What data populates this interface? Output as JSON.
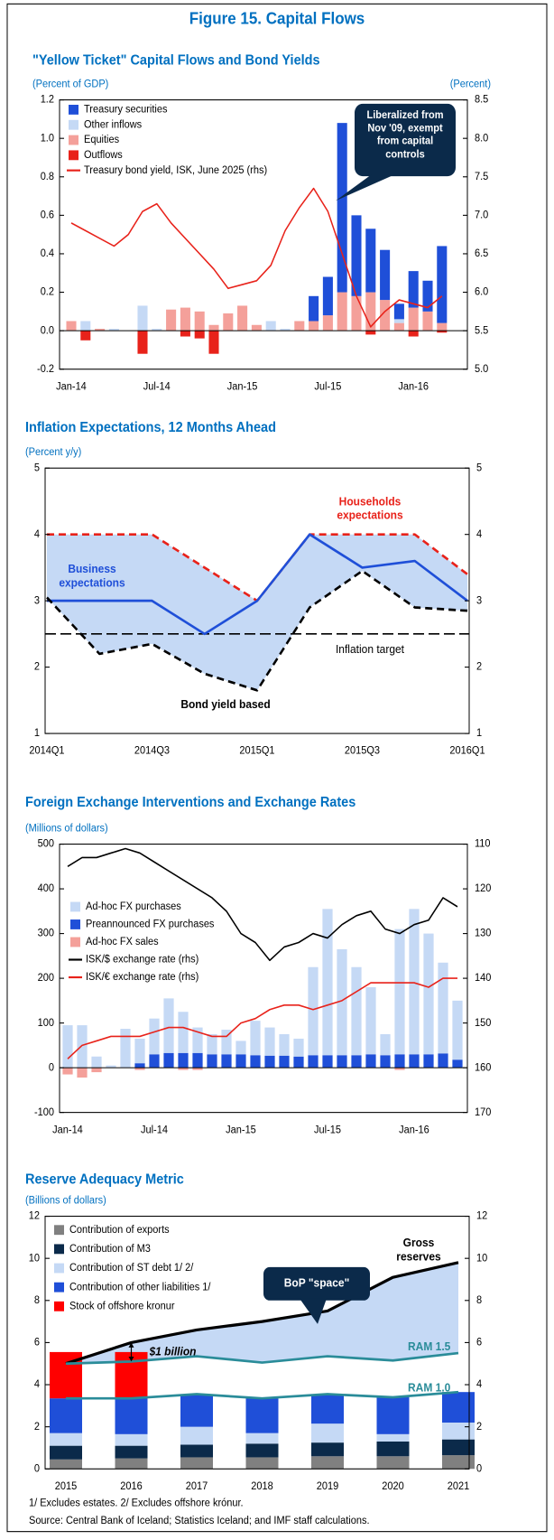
{
  "title": "Figure 15. Capital Flows",
  "notes": [
    "1/ Excludes estates. 2/ Excludes offshore krónur.",
    "Source: Central Bank of Iceland; Statistics Iceland; and IMF staff calculations."
  ],
  "chart_data": [
    {
      "type": "bar",
      "title": "\"Yellow Ticket\" Capital Flows and Bond Yields",
      "ylabel": "(Percent of GDP)",
      "y2label": "(Percent)",
      "stack_order": "reverse",
      "legend": "upper left",
      "annotation": "Liberalized from Nov '09, exempt from capital controls",
      "categories": [
        "Jan-14",
        null,
        null,
        null,
        null,
        null,
        "Jul-14",
        null,
        null,
        null,
        null,
        null,
        "Jan-15",
        null,
        null,
        null,
        null,
        null,
        "Jul-15",
        null,
        null,
        null,
        null,
        null,
        "Jan-16",
        null,
        null
      ],
      "ylim": [
        -0.2,
        1.2
      ],
      "yticks": [
        1.2,
        {
          "value": 1,
          "label": "1.0"
        },
        0.8,
        0.6,
        0.4,
        0.2,
        {
          "value": 0,
          "label": "0.0"
        },
        -0.2
      ],
      "y2lim": [
        5,
        8.5
      ],
      "y2ticks": [
        8.5,
        {
          "value": 8,
          "label": "8.0"
        },
        7.5,
        {
          "value": 7,
          "label": "7.0"
        },
        6.5,
        {
          "value": 6,
          "label": "6.0"
        },
        5.5,
        {
          "value": 5,
          "label": "5.0"
        }
      ],
      "series": [
        {
          "name": "Treasury securities",
          "type": "bar",
          "color": "#1f4fd8",
          "values": [
            0,
            0,
            0,
            0,
            0,
            0,
            0,
            0,
            0,
            0,
            0,
            0,
            0,
            0,
            0,
            0,
            0,
            0.13,
            0.2,
            0.88,
            0.42,
            0.33,
            0.26,
            0.08,
            0.19,
            0.16,
            0.4
          ]
        },
        {
          "name": "Other inflows",
          "type": "bar",
          "color": "#c5d9f5",
          "values": [
            0,
            0.05,
            0,
            0.01,
            0,
            0.13,
            0.01,
            0,
            0,
            0,
            0,
            0,
            0,
            0,
            0.05,
            0.01,
            0,
            0,
            0,
            0,
            0,
            0,
            0,
            0.02,
            0,
            0,
            0
          ]
        },
        {
          "name": "Equities",
          "type": "bar",
          "color": "#f4a09a",
          "values": [
            0.05,
            0,
            0.01,
            0,
            0,
            0,
            0,
            0.11,
            0.12,
            0.1,
            0.03,
            0.09,
            0.13,
            0.03,
            0,
            0,
            0.05,
            0.05,
            0.08,
            0.2,
            0.18,
            0.2,
            0.16,
            0.04,
            0.12,
            0.1,
            0.04
          ]
        },
        {
          "name": "Outflows",
          "type": "bar",
          "color": "#e8221a",
          "values": [
            0,
            -0.05,
            0,
            0,
            0,
            -0.12,
            0,
            0,
            -0.03,
            -0.04,
            -0.12,
            0,
            0,
            0,
            0,
            0,
            0,
            0,
            0,
            0,
            0,
            -0.02,
            0,
            0,
            -0.03,
            0,
            -0.01
          ]
        },
        {
          "name": "Treasury bond yield, ISK, June 2025 (rhs)",
          "type": "line",
          "axis": "y2",
          "color": "#e8221a",
          "values": [
            6.9,
            6.8,
            6.7,
            6.6,
            6.75,
            7.05,
            7.15,
            6.9,
            6.7,
            6.5,
            6.3,
            6.05,
            6.1,
            6.15,
            6.35,
            6.8,
            7.1,
            7.35,
            7.05,
            6.5,
            5.95,
            5.55,
            5.75,
            5.9,
            5.85,
            5.8,
            5.95
          ]
        }
      ]
    },
    {
      "type": "line",
      "title": "Inflation Expectations, 12 Months Ahead",
      "ylabel": "(Percent y/y)",
      "categories": [
        "2014Q1",
        null,
        "2014Q3",
        null,
        "2015Q1",
        null,
        "2015Q3",
        null,
        "2016Q1"
      ],
      "ylim": [
        1,
        5
      ],
      "yticks": [
        1,
        2,
        3,
        4,
        5
      ],
      "y2lim": [
        1,
        5
      ],
      "y2ticks": [
        1,
        2,
        3,
        4,
        5
      ],
      "fill_between": [
        0,
        2
      ],
      "fill_color": "#c5d9f5",
      "target": {
        "name": "Inflation target",
        "value": 2.5
      },
      "series": [
        {
          "name": "Households expectations",
          "type": "line",
          "color": "#e8221a",
          "dash": true,
          "direct_label": true,
          "values": [
            4,
            4,
            4,
            3.5,
            3,
            4,
            4,
            4,
            3.4
          ]
        },
        {
          "name": "Business expectations",
          "type": "line",
          "color": "#1f4fd8",
          "direct_label": true,
          "values": [
            3,
            3,
            3,
            2.5,
            3,
            4,
            3.5,
            3.6,
            3
          ]
        },
        {
          "name": "Bond yield based",
          "type": "line",
          "color": "#000000",
          "dash": true,
          "direct_label": true,
          "values": [
            3.05,
            2.2,
            2.35,
            1.9,
            1.65,
            2.9,
            3.45,
            2.9,
            2.85
          ]
        }
      ]
    },
    {
      "type": "bar",
      "title": "Foreign Exchange Interventions and Exchange Rates",
      "ylabel": "(Millions of dollars)",
      "stack_order": "reverse",
      "legend": "upper left",
      "categories": [
        "Jan-14",
        null,
        null,
        null,
        null,
        null,
        "Jul-14",
        null,
        null,
        null,
        null,
        null,
        "Jan-15",
        null,
        null,
        null,
        null,
        null,
        "Jul-15",
        null,
        null,
        null,
        null,
        null,
        "Jan-16",
        null,
        null,
        null
      ],
      "ylim": [
        -100,
        500
      ],
      "yticks": [
        500,
        400,
        300,
        200,
        100,
        0,
        -100
      ],
      "y2lim": [
        170,
        110
      ],
      "y2ticks": [
        110,
        120,
        130,
        140,
        150,
        160,
        170
      ],
      "series": [
        {
          "name": "Ad-hoc FX purchases",
          "type": "bar",
          "color": "#c5d9f5",
          "values": [
            95,
            95,
            25,
            5,
            87,
            55,
            80,
            122,
            92,
            57,
            45,
            55,
            30,
            77,
            63,
            48,
            40,
            197,
            327,
            237,
            197,
            150,
            47,
            280,
            325,
            270,
            203,
            132
          ]
        },
        {
          "name": "Preannounced FX purchases",
          "type": "bar",
          "color": "#1f4fd8",
          "values": [
            0,
            0,
            0,
            0,
            0,
            10,
            30,
            33,
            33,
            33,
            30,
            30,
            30,
            28,
            27,
            27,
            25,
            28,
            28,
            28,
            28,
            30,
            28,
            30,
            30,
            30,
            32,
            18
          ]
        },
        {
          "name": "Ad-hoc FX sales",
          "type": "bar",
          "color": "#f4a09a",
          "values": [
            -15,
            -22,
            -10,
            0,
            0,
            -5,
            0,
            0,
            -5,
            -5,
            0,
            0,
            0,
            0,
            0,
            0,
            0,
            0,
            0,
            0,
            0,
            0,
            0,
            -5,
            0,
            0,
            0,
            0
          ]
        },
        {
          "name": "ISK/$ exchange rate (rhs)",
          "type": "line",
          "axis": "y2",
          "color": "#000000",
          "values": [
            115,
            113,
            113,
            112,
            111,
            112,
            114,
            116,
            118,
            120,
            122,
            125,
            130,
            132,
            136,
            133,
            132,
            130,
            131,
            128,
            126,
            125,
            129,
            130,
            128,
            127,
            122,
            124
          ]
        },
        {
          "name": "ISK/€ exchange rate (rhs)",
          "type": "line",
          "axis": "y2",
          "color": "#e8221a",
          "values": [
            158,
            155,
            154,
            153,
            153,
            153,
            152,
            151,
            151,
            152,
            153,
            153,
            150,
            149,
            147,
            146,
            146,
            147,
            146,
            145,
            143,
            141,
            141,
            141,
            141,
            142,
            140,
            140
          ]
        }
      ]
    },
    {
      "type": "bar",
      "title": "Reserve Adequacy Metric",
      "ylabel": "(Billions of dollars)",
      "legend": "upper left",
      "categories": [
        "2015",
        "2016",
        "2017",
        "2018",
        "2019",
        "2020",
        "2021"
      ],
      "ylim": [
        0,
        12
      ],
      "yticks": [
        0,
        2,
        4,
        6,
        8,
        10,
        12
      ],
      "y2lim": [
        0,
        12
      ],
      "y2ticks": [
        0,
        2,
        4,
        6,
        8,
        10,
        12
      ],
      "fill_between": [
        5,
        6
      ],
      "fill_color": "#c5d9f5",
      "annotations": [
        "BoP \"space\"",
        "$1 billion"
      ],
      "series": [
        {
          "name": "Contribution of exports",
          "type": "bar",
          "color": "#808080",
          "values": [
            0.45,
            0.5,
            0.55,
            0.55,
            0.6,
            0.6,
            0.65
          ]
        },
        {
          "name": "Contribution of M3",
          "type": "bar",
          "color": "#0b2a4a",
          "values": [
            0.65,
            0.6,
            0.6,
            0.65,
            0.65,
            0.7,
            0.75
          ]
        },
        {
          "name": "Contribution of ST debt 1/ 2/",
          "type": "bar",
          "color": "#c5d9f5",
          "values": [
            0.6,
            0.55,
            0.85,
            0.5,
            0.9,
            0.35,
            0.8
          ]
        },
        {
          "name": "Contribution of other liabilities 1/",
          "type": "bar",
          "color": "#1f4fd8",
          "values": [
            1.65,
            1.7,
            1.5,
            1.65,
            1.4,
            1.75,
            1.45
          ]
        },
        {
          "name": "Stock of offshore kronur",
          "type": "bar",
          "color": "#ff0000",
          "values": [
            2.2,
            2.2,
            0,
            0,
            0,
            0,
            0
          ]
        },
        {
          "name": "Gross reserves",
          "type": "line",
          "color": "#000000",
          "direct_label": true,
          "values": [
            5,
            6,
            6.6,
            7,
            7.5,
            9.1,
            9.8
          ]
        },
        {
          "name": "RAM 1.5",
          "type": "line",
          "color": "#2a8c99",
          "direct_label": true,
          "values": [
            5,
            5.1,
            5.35,
            5.05,
            5.35,
            5.15,
            5.5
          ]
        },
        {
          "name": "RAM 1.0",
          "type": "line",
          "color": "#2a8c99",
          "direct_label": true,
          "values": [
            3.35,
            3.35,
            3.55,
            3.35,
            3.55,
            3.4,
            3.65
          ]
        }
      ]
    }
  ]
}
